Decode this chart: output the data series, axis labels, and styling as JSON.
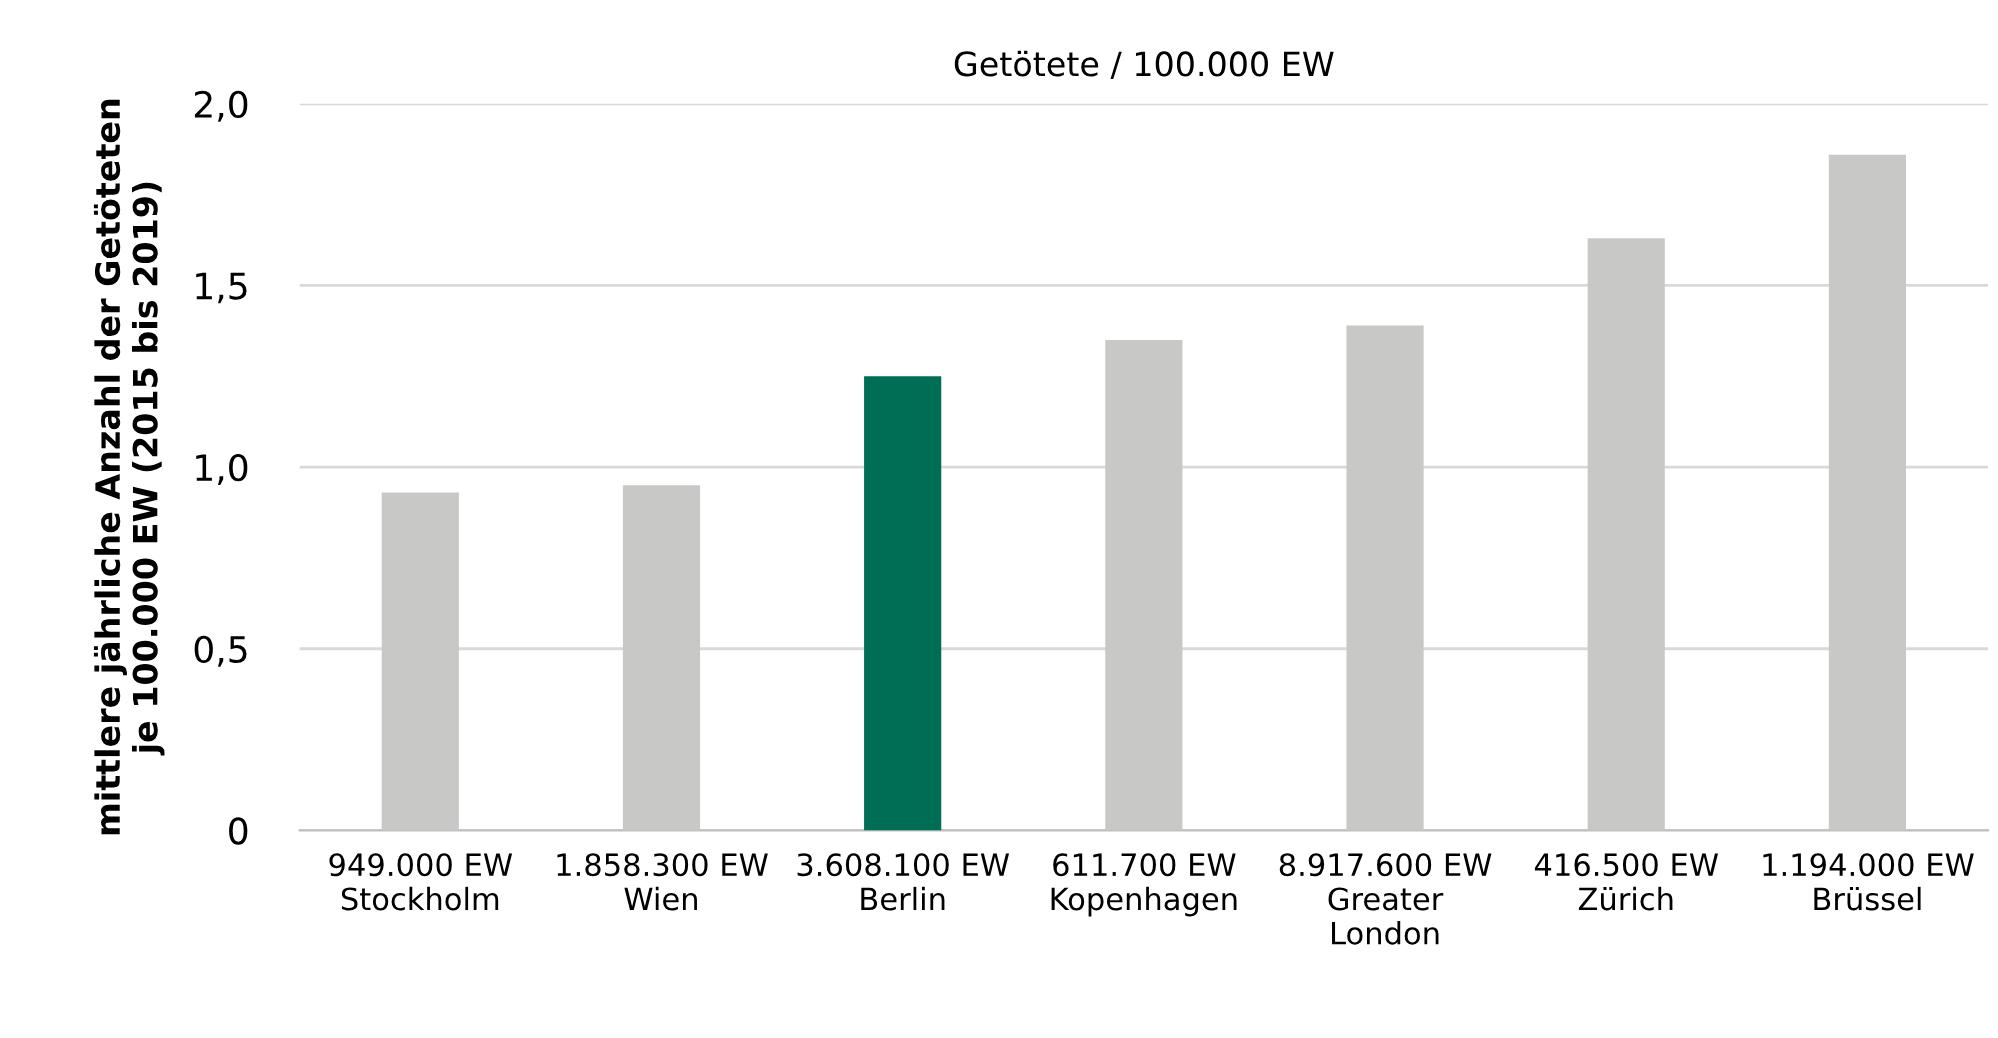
{
  "chart_data": {
    "type": "bar",
    "title": "Getötete / 100.000 EW",
    "ylabel": "mittlere jährliche Anzahl der Getöteten\nje 100.000 EW (2015 bis 2019)",
    "categories": [
      "949.000 EW\nStockholm",
      "1.858.300 EW\nWien",
      "3.608.100 EW\nBerlin",
      "611.700 EW\nKopenhagen",
      "8.917.600 EW\nGreater\nLondon",
      "416.500 EW\nZürich",
      "1.194.000 EW\nBrüssel"
    ],
    "values": [
      0.93,
      0.95,
      1.25,
      1.35,
      1.39,
      1.63,
      1.86
    ],
    "colors": [
      "#c8c8c6",
      "#c8c8c6",
      "#006e55",
      "#c8c8c6",
      "#c8c8c6",
      "#c8c8c6",
      "#c8c8c6"
    ],
    "ylim": [
      0,
      2.0
    ],
    "yticks": [
      {
        "value": 0,
        "label": "0"
      },
      {
        "value": 0.5,
        "label": "0,5"
      },
      {
        "value": 1.0,
        "label": "1,0"
      },
      {
        "value": 1.5,
        "label": "1,5"
      },
      {
        "value": 2.0,
        "label": "2,0"
      }
    ],
    "grid": "y",
    "legend": false
  }
}
